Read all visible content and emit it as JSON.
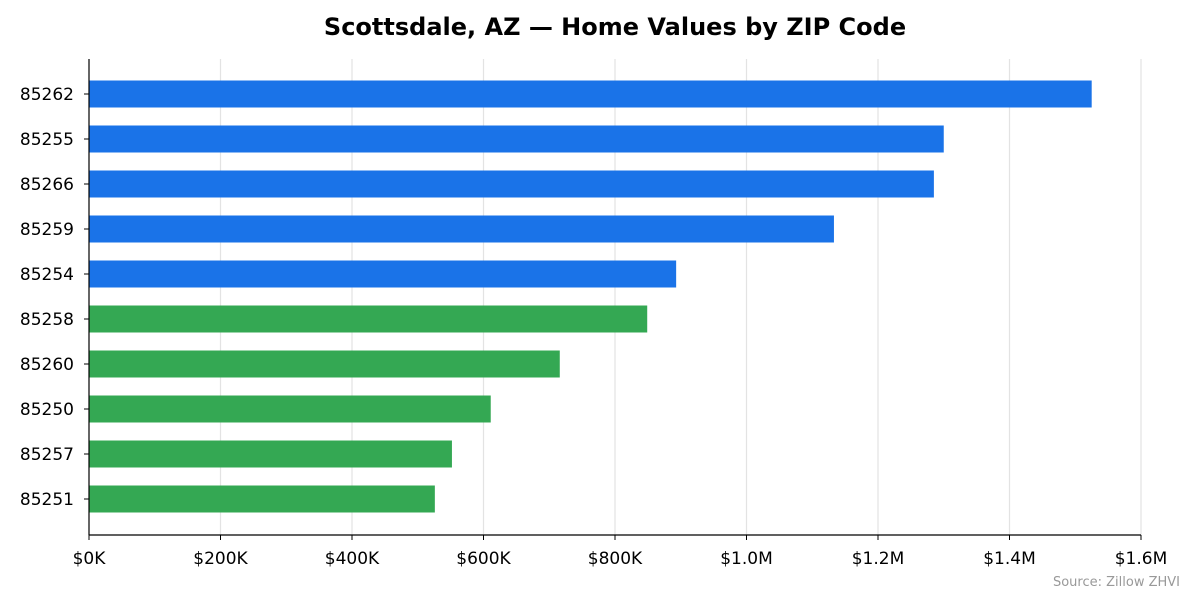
{
  "chart_data": {
    "type": "bar",
    "orientation": "horizontal",
    "title": "Scottsdale, AZ — Home Values by ZIP Code",
    "xlabel": "",
    "ylabel": "",
    "categories": [
      "85262",
      "85255",
      "85266",
      "85259",
      "85254",
      "85258",
      "85260",
      "85250",
      "85257",
      "85251"
    ],
    "values": [
      1525000,
      1300000,
      1285000,
      1133000,
      893000,
      849000,
      716000,
      611000,
      552000,
      526000
    ],
    "bar_colors": [
      "#1a73e8",
      "#1a73e8",
      "#1a73e8",
      "#1a73e8",
      "#1a73e8",
      "#34a853",
      "#34a853",
      "#34a853",
      "#34a853",
      "#34a853"
    ],
    "xlim": [
      0,
      1600000
    ],
    "xticks": [
      0,
      200000,
      400000,
      600000,
      800000,
      1000000,
      1200000,
      1400000,
      1600000
    ],
    "xtick_labels": [
      "$0K",
      "$200K",
      "$400K",
      "$600K",
      "$800K",
      "$1.0M",
      "$1.2M",
      "$1.4M",
      "$1.6M"
    ],
    "grid": "vertical",
    "source_note": "Source: Zillow ZHVI"
  }
}
